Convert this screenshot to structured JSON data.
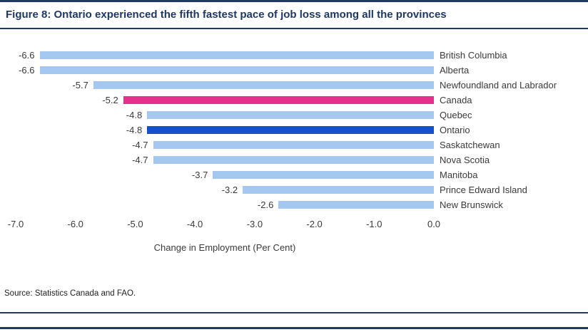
{
  "title": "Figure 8: Ontario experienced the fifth fastest pace of job loss among all the provinces",
  "source_note": "Source: Statistics Canada and FAO.",
  "colors": {
    "navy": "#1F3864",
    "text": "#3A3A3A",
    "default": "#A5C8F0",
    "canada": "#E5308C",
    "ontario": "#1551C8"
  },
  "chart_data": {
    "type": "bar",
    "orientation": "horizontal",
    "title": "Figure 8: Ontario experienced the fifth fastest pace of job loss among all the provinces",
    "xlabel": "Change in Employment (Per Cent)",
    "ylabel": "",
    "xlim": [
      -7.0,
      0.0
    ],
    "x_ticks": [
      -7.0,
      -6.0,
      -5.0,
      -4.0,
      -3.0,
      -2.0,
      -1.0,
      0.0
    ],
    "grid": false,
    "legend": "none",
    "categories": [
      "British Columbia",
      "Alberta",
      "Newfoundland and Labrador",
      "Canada",
      "Quebec",
      "Ontario",
      "Saskatchewan",
      "Nova Scotia",
      "Manitoba",
      "Prince Edward Island",
      "New Brunswick"
    ],
    "values": [
      -6.6,
      -6.6,
      -5.7,
      -5.2,
      -4.8,
      -4.8,
      -4.7,
      -4.7,
      -3.7,
      -3.2,
      -2.6
    ],
    "bar_color_roles": [
      "default",
      "default",
      "default",
      "canada",
      "default",
      "ontario",
      "default",
      "default",
      "default",
      "default",
      "default"
    ]
  }
}
